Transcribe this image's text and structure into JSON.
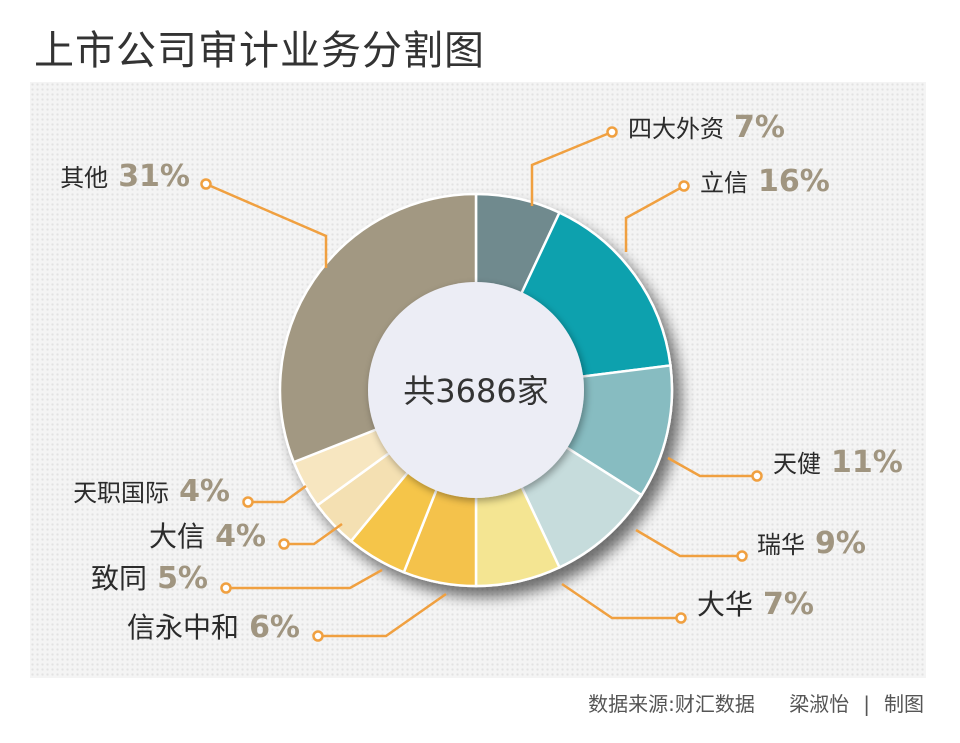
{
  "title": "上市公司审计业务分割图",
  "source": {
    "data_source": "数据来源:财汇数据",
    "author": "梁淑怡",
    "role": "制图"
  },
  "colors": {
    "leader_line": "#f0a040",
    "dot_fill": "#ffffff",
    "center_fill": "#ecedf5"
  },
  "chart_data": {
    "type": "pie",
    "style": "donut",
    "center_label": "共3686家",
    "slices": [
      {
        "label": "四大外资",
        "pct_label": "7%",
        "value": 7,
        "color": "#6f8a8e"
      },
      {
        "label": "立信",
        "pct_label": "16%",
        "value": 16,
        "color": "#0aa1ae"
      },
      {
        "label": "天健",
        "pct_label": "11%",
        "value": 11,
        "color": "#87bcc1"
      },
      {
        "label": "瑞华",
        "pct_label": "9%",
        "value": 9,
        "color": "#c6dcdc"
      },
      {
        "label": "大华",
        "pct_label": "7%",
        "value": 7,
        "color": "#f4e592"
      },
      {
        "label": "信永中和",
        "pct_label": "6%",
        "value": 6,
        "color": "#f4c24c"
      },
      {
        "label": "致同",
        "pct_label": "5%",
        "value": 5,
        "color": "#f5c54a"
      },
      {
        "label": "大信",
        "pct_label": "4%",
        "value": 4,
        "color": "#f4e0b2"
      },
      {
        "label": "天职国际",
        "pct_label": "4%",
        "value": 4,
        "color": "#f7e6c0"
      },
      {
        "label": "其他",
        "pct_label": "31%",
        "value": 31,
        "color": "#a29882"
      }
    ]
  }
}
